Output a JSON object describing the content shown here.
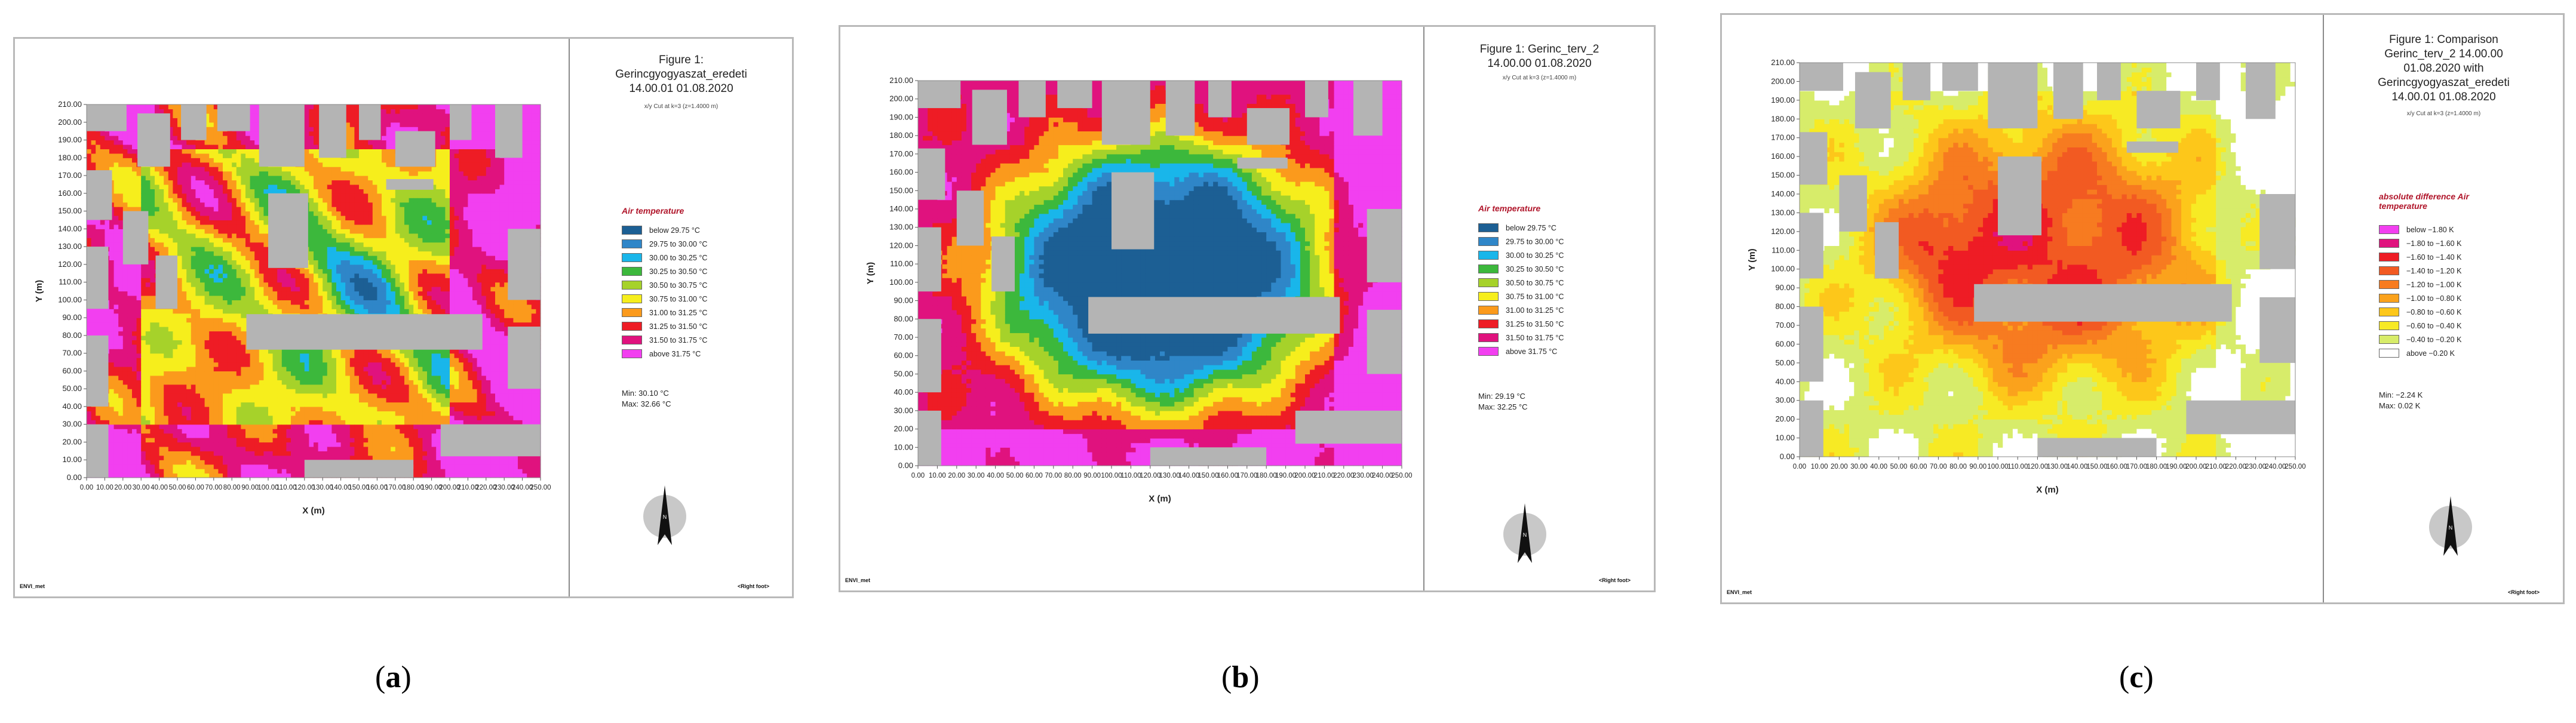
{
  "chart_data": [
    {
      "type": "heatmap",
      "caption": "a",
      "title": "Figure 1:\nGerincgyogyaszat_eredeti\n14.00.01 01.08.2020",
      "subtitle": "x/y Cut at k=3 (z=1.4000 m)",
      "xlabel": "X (m)",
      "ylabel": "Y (m)",
      "xlim": [
        0,
        250
      ],
      "ylim": [
        0,
        210
      ],
      "y_ticks": [
        "0.00",
        "10.00",
        "20.00",
        "30.00",
        "40.00",
        "50.00",
        "60.00",
        "70.00",
        "80.00",
        "90.00",
        "100.00",
        "110.00",
        "120.00",
        "130.00",
        "140.00",
        "150.00",
        "160.00",
        "170.00",
        "180.00",
        "190.00",
        "200.00",
        "210.00"
      ],
      "legend_title": "Air temperature",
      "legend": [
        {
          "label": "below 29.75 °C",
          "color": "#1c5f94"
        },
        {
          "label": "29.75 to 30.00 °C",
          "color": "#2f86c8"
        },
        {
          "label": "30.00 to 30.25 °C",
          "color": "#19b6ea"
        },
        {
          "label": "30.25 to 30.50 °C",
          "color": "#3cb83c"
        },
        {
          "label": "30.50 to 30.75 °C",
          "color": "#a6d22a"
        },
        {
          "label": "30.75 to 31.00 °C",
          "color": "#f6ee1c"
        },
        {
          "label": "31.00 to 31.25 °C",
          "color": "#fb9a1c"
        },
        {
          "label": "31.25 to 31.50 °C",
          "color": "#ee1c25"
        },
        {
          "label": "31.50 to 31.75 °C",
          "color": "#e0127e"
        },
        {
          "label": "above 31.75 °C",
          "color": "#f23ff0"
        }
      ],
      "min_label": "Min: 30.10 °C",
      "max_label": "Max: 32.66 °C",
      "footer_left": "ENVI_met",
      "footer_right": "<Right foot>"
    },
    {
      "type": "heatmap",
      "caption": "b",
      "title": "Figure 1: Gerinc_terv_2\n14.00.00 01.08.2020",
      "subtitle": "x/y Cut at k=3 (z=1.4000 m)",
      "xlabel": "X (m)",
      "ylabel": "Y (m)",
      "xlim": [
        0,
        250
      ],
      "ylim": [
        0,
        210
      ],
      "y_ticks": [
        "0.00",
        "10.00",
        "20.00",
        "30.00",
        "40.00",
        "50.00",
        "60.00",
        "70.00",
        "80.00",
        "90.00",
        "100.00",
        "110.00",
        "120.00",
        "130.00",
        "140.00",
        "150.00",
        "160.00",
        "170.00",
        "180.00",
        "190.00",
        "200.00",
        "210.00"
      ],
      "legend_title": "Air temperature",
      "legend": [
        {
          "label": "below 29.75 °C",
          "color": "#1c5f94"
        },
        {
          "label": "29.75 to 30.00 °C",
          "color": "#2f86c8"
        },
        {
          "label": "30.00 to 30.25 °C",
          "color": "#19b6ea"
        },
        {
          "label": "30.25 to 30.50 °C",
          "color": "#3cb83c"
        },
        {
          "label": "30.50 to 30.75 °C",
          "color": "#a6d22a"
        },
        {
          "label": "30.75 to 31.00 °C",
          "color": "#f6ee1c"
        },
        {
          "label": "31.00 to 31.25 °C",
          "color": "#fb9a1c"
        },
        {
          "label": "31.25 to 31.50 °C",
          "color": "#ee1c25"
        },
        {
          "label": "31.50 to 31.75 °C",
          "color": "#e0127e"
        },
        {
          "label": "above 31.75 °C",
          "color": "#f23ff0"
        }
      ],
      "min_label": "Min: 29.19 °C",
      "max_label": "Max: 32.25 °C",
      "footer_left": "ENVI_met",
      "footer_right": "<Right foot>"
    },
    {
      "type": "heatmap",
      "caption": "c",
      "title": "Figure 1: Comparison\nGerinc_terv_2 14.00.00\n01.08.2020 with\nGerincgyogyaszat_eredeti\n14.00.01 01.08.2020",
      "subtitle": "x/y Cut at k=3 (z=1.4000 m)",
      "xlabel": "X (m)",
      "ylabel": "Y (m)",
      "xlim": [
        0,
        250
      ],
      "ylim": [
        0,
        210
      ],
      "y_ticks": [
        "0.00",
        "10.00",
        "20.00",
        "30.00",
        "40.00",
        "50.00",
        "60.00",
        "70.00",
        "80.00",
        "90.00",
        "100.00",
        "110.00",
        "120.00",
        "130.00",
        "140.00",
        "150.00",
        "160.00",
        "170.00",
        "180.00",
        "190.00",
        "200.00",
        "210.00"
      ],
      "legend_title": "absolute difference Air temperature",
      "legend": [
        {
          "label": "below −1.80 K",
          "color": "#f23ff0"
        },
        {
          "label": "−1.80 to −1.60 K",
          "color": "#e0127e"
        },
        {
          "label": "−1.60 to −1.40 K",
          "color": "#ee1c25"
        },
        {
          "label": "−1.40 to −1.20 K",
          "color": "#f25a22"
        },
        {
          "label": "−1.20 to −1.00 K",
          "color": "#f77b20"
        },
        {
          "label": "−1.00 to −0.80 K",
          "color": "#fba21c"
        },
        {
          "label": "−0.80 to −0.60 K",
          "color": "#fdc71a"
        },
        {
          "label": "−0.60 to −0.40 K",
          "color": "#f7ea24"
        },
        {
          "label": "−0.40 to −0.20 K",
          "color": "#d7ec6a"
        },
        {
          "label": "above −0.20 K",
          "color": "#ffffff"
        }
      ],
      "min_label": "Min: −2.24 K",
      "max_label": "Max: 0.02 K",
      "footer_left": "ENVI_met",
      "footer_right": "<Right foot>"
    }
  ],
  "colors": {
    "building": "#b4b4b4",
    "north_arrow_circle": "#c8c8c8"
  },
  "north_label": "N"
}
